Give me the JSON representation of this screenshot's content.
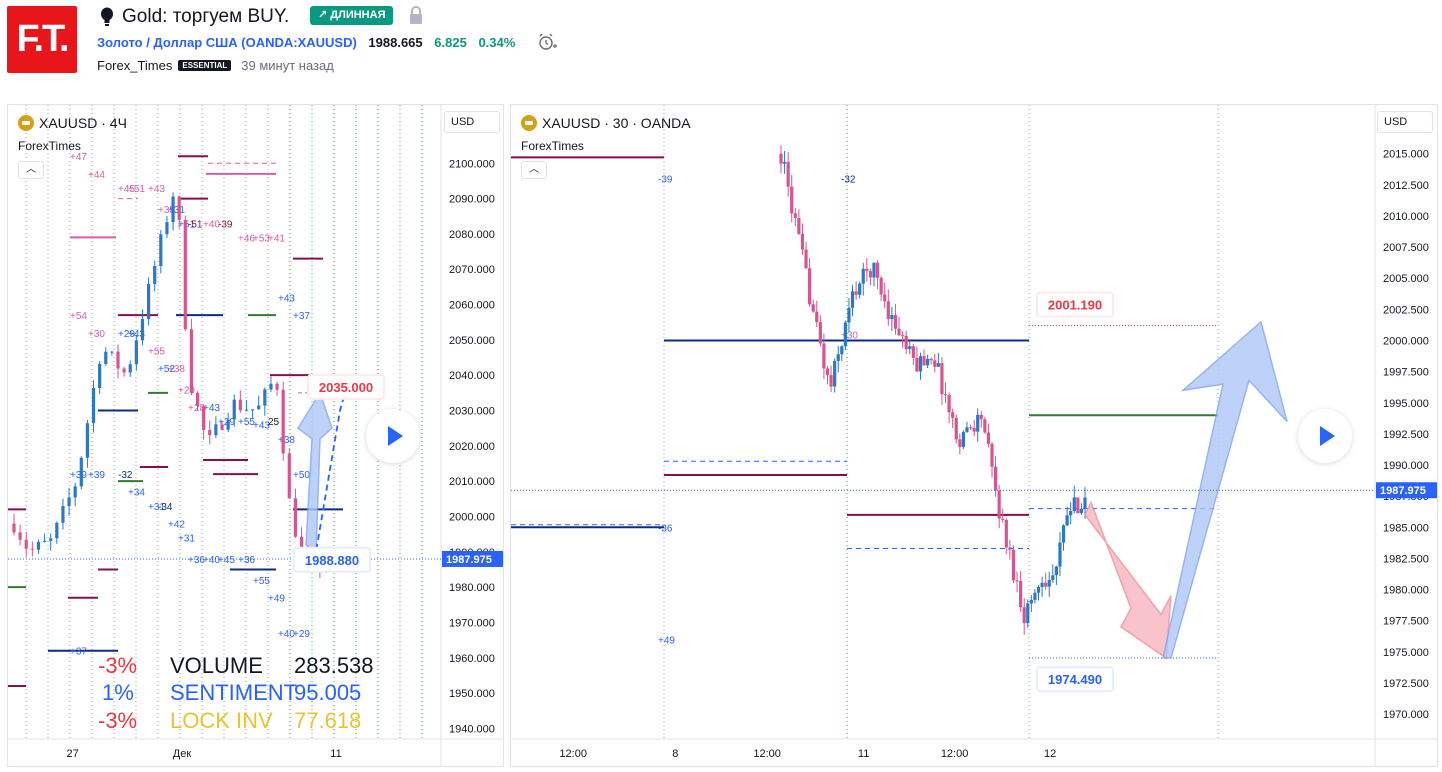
{
  "header": {
    "logo_text": "F.T.",
    "idea_title": "Gold: торгуем BUY.",
    "badge": "↗ ДЛИННАЯ",
    "symbol_name": "Золото / Доллар США",
    "symbol_code": "(OANDA:XAUUSD)",
    "price": "1988.665",
    "change": "6.825",
    "change_pct": "0.34%",
    "author": "Forex_Times",
    "author_badge": "ESSENTIAL",
    "time_ago": "39 минут назад",
    "colors": {
      "accent": "#2962ff",
      "positive": "#089981",
      "logo_red": "#e8161b"
    }
  },
  "icons": [
    "bulb-icon",
    "lock-icon",
    "alarm-icon",
    "coin-icon",
    "chevron-up-icon",
    "play-icon"
  ],
  "chart_data": [
    {
      "type": "candlestick",
      "title": "XAUUSD · 4Ч",
      "subtitle": "ForexTimes",
      "currency": "USD",
      "ylim": [
        1937,
        2108
      ],
      "y_ticks": [
        "2100.000",
        "2090.000",
        "2080.000",
        "2070.000",
        "2060.000",
        "2050.000",
        "2040.000",
        "2030.000",
        "2020.000",
        "2010.000",
        "2000.000",
        "1990.000",
        "1980.000",
        "1970.000",
        "1960.000",
        "1950.000",
        "1940.000"
      ],
      "y_tick_values": [
        2100,
        2090,
        2080,
        2070,
        2060,
        2050,
        2040,
        2030,
        2020,
        2010,
        2000,
        1990,
        1980,
        1970,
        1960,
        1950,
        1940
      ],
      "x_ticks": [
        {
          "label": "27",
          "pos": 0.13
        },
        {
          "label": "Дек",
          "pos": 0.35
        },
        {
          "label": "11",
          "pos": 0.66
        }
      ],
      "last_price": "1987.975",
      "last_price_value": 1987.975,
      "price_labels": [
        {
          "text": "2035.000",
          "value": 2035,
          "color": "#f23645"
        },
        {
          "text": "1988.880",
          "value": 1988.88,
          "color": "#2962ff"
        }
      ],
      "stats": [
        {
          "pct": "-3%",
          "label": "VOLUME",
          "value": "283.538",
          "pct_color": "#f23645",
          "color": "#131722"
        },
        {
          "pct": "1%",
          "label": "SENTIMENT",
          "value": "95.005",
          "pct_color": "#2962ff",
          "color": "#2962ff"
        },
        {
          "pct": "-3%",
          "label": "LOCK INV",
          "value": "77.618",
          "pct_color": "#f23645",
          "color": "#e8c530"
        }
      ],
      "level_labels": [
        {
          "t": "+47",
          "v": 2102,
          "c": "#d65ea8"
        },
        {
          "t": "+44",
          "v": 2097,
          "c": "#d65ea8"
        },
        {
          "t": "+45",
          "v": 2093,
          "c": "#d65ea8"
        },
        {
          "t": "+51",
          "v": 2093,
          "c": "#d65ea8"
        },
        {
          "t": "+43",
          "v": 2093,
          "c": "#d65ea8"
        },
        {
          "t": "+35",
          "v": 2087,
          "c": "#d65ea8"
        },
        {
          "t": "+31",
          "v": 2087,
          "c": "#2962ff"
        },
        {
          "t": "+51",
          "v": 2083,
          "c": "#2962ff"
        },
        {
          "t": "-51",
          "v": 2083,
          "c": "#880e4f"
        },
        {
          "t": "+40",
          "v": 2083,
          "c": "#d65ea8"
        },
        {
          "t": "-39",
          "v": 2083,
          "c": "#880e4f"
        },
        {
          "t": "+46",
          "v": 2079,
          "c": "#d65ea8"
        },
        {
          "t": "+53",
          "v": 2079,
          "c": "#d65ea8"
        },
        {
          "t": "+41",
          "v": 2079,
          "c": "#d65ea8"
        },
        {
          "t": "+43",
          "v": 2062,
          "c": "#2962ff"
        },
        {
          "t": "+37",
          "v": 2057,
          "c": "#2962ff"
        },
        {
          "t": "+54",
          "v": 2057,
          "c": "#d65ea8"
        },
        {
          "t": "+30",
          "v": 2052,
          "c": "#d65ea8"
        },
        {
          "t": "+29",
          "v": 2052,
          "c": "#2962ff"
        },
        {
          "t": "+43",
          "v": 2052,
          "c": "#2962ff"
        },
        {
          "t": "+55",
          "v": 2047,
          "c": "#d65ea8"
        },
        {
          "t": "+52",
          "v": 2042,
          "c": "#2962ff"
        },
        {
          "t": "+38",
          "v": 2042,
          "c": "#d65ea8"
        },
        {
          "t": "+29",
          "v": 2036,
          "c": "#d65ea8"
        },
        {
          "t": "+28",
          "v": 2031,
          "c": "#d65ea8"
        },
        {
          "t": "+43",
          "v": 2031,
          "c": "#2962ff"
        },
        {
          "t": "+29",
          "v": 2027,
          "c": "#2962ff"
        },
        {
          "t": "+55",
          "v": 2027,
          "c": "#2962ff"
        },
        {
          "t": "+43",
          "v": 2026,
          "c": "#2962ff"
        },
        {
          "t": "25",
          "v": 2027,
          "c": "#131722"
        },
        {
          "t": "+38",
          "v": 2022,
          "c": "#2962ff"
        },
        {
          "t": "+50",
          "v": 2012,
          "c": "#2962ff"
        },
        {
          "t": "+39",
          "v": 2012,
          "c": "#2962ff"
        },
        {
          "t": "+39",
          "v": 2012,
          "c": "#2962ff"
        },
        {
          "t": "-32",
          "v": 2012,
          "c": "#0d2c86"
        },
        {
          "t": "+34",
          "v": 2007,
          "c": "#2962ff"
        },
        {
          "t": "+31",
          "v": 2003,
          "c": "#2962ff"
        },
        {
          "t": "-34",
          "v": 2003,
          "c": "#0d2c86"
        },
        {
          "t": "+42",
          "v": 1998,
          "c": "#2962ff"
        },
        {
          "t": "+31",
          "v": 1994,
          "c": "#2962ff"
        },
        {
          "t": "+36",
          "v": 1988,
          "c": "#2962ff"
        },
        {
          "t": "+40",
          "v": 1988,
          "c": "#2962ff"
        },
        {
          "t": "+45",
          "v": 1988,
          "c": "#2962ff"
        },
        {
          "t": "+36",
          "v": 1988,
          "c": "#2962ff"
        },
        {
          "t": "+55",
          "v": 1982,
          "c": "#2962ff"
        },
        {
          "t": "+49",
          "v": 1977,
          "c": "#2962ff"
        },
        {
          "t": "+40",
          "v": 1967,
          "c": "#2962ff"
        },
        {
          "t": "+29",
          "v": 1967,
          "c": "#2962ff"
        },
        {
          "t": "+37",
          "v": 1962,
          "c": "#2962ff"
        }
      ]
    },
    {
      "type": "candlestick",
      "title": "XAUUSD · 30 · OANDA",
      "subtitle": "ForexTimes",
      "currency": "USD",
      "ylim": [
        1968,
        2016.5
      ],
      "y_ticks": [
        "2015.000",
        "2012.500",
        "2010.000",
        "2007.500",
        "2005.000",
        "2002.500",
        "2000.000",
        "1997.500",
        "1995.000",
        "1992.500",
        "1990.000",
        "1987.500",
        "1985.000",
        "1982.500",
        "1980.000",
        "1977.500",
        "1975.000",
        "1972.500",
        "1970.000"
      ],
      "y_tick_values": [
        2015,
        2012.5,
        2010,
        2007.5,
        2005,
        2002.5,
        2000,
        1997.5,
        1995,
        1992.5,
        1990,
        1987.5,
        1985,
        1982.5,
        1980,
        1977.5,
        1975,
        1972.5,
        1970
      ],
      "x_ticks": [
        {
          "label": "12:00",
          "pos": 0.067
        },
        {
          "label": "8",
          "pos": 0.177
        },
        {
          "label": "12:00",
          "pos": 0.276
        },
        {
          "label": "11",
          "pos": 0.38
        },
        {
          "label": "12:00",
          "pos": 0.478
        },
        {
          "label": "12",
          "pos": 0.581
        }
      ],
      "last_price": "1987.975",
      "last_price_value": 1987.975,
      "price_labels": [
        {
          "text": "2001.190",
          "value": 2001.19,
          "color": "#f23645"
        },
        {
          "text": "1974.490",
          "value": 1974.49,
          "color": "#2962ff"
        }
      ],
      "level_labels": [
        {
          "t": "-39",
          "v": 2013,
          "c": "#2962ff"
        },
        {
          "t": "-32",
          "v": 2013,
          "c": "#0d2c86"
        },
        {
          "t": "+30",
          "v": 2000.5,
          "c": "#d65ea8"
        },
        {
          "t": "-36",
          "v": 1985,
          "c": "#2962ff"
        },
        {
          "t": "+49",
          "v": 1976,
          "c": "#2962ff"
        }
      ]
    }
  ]
}
